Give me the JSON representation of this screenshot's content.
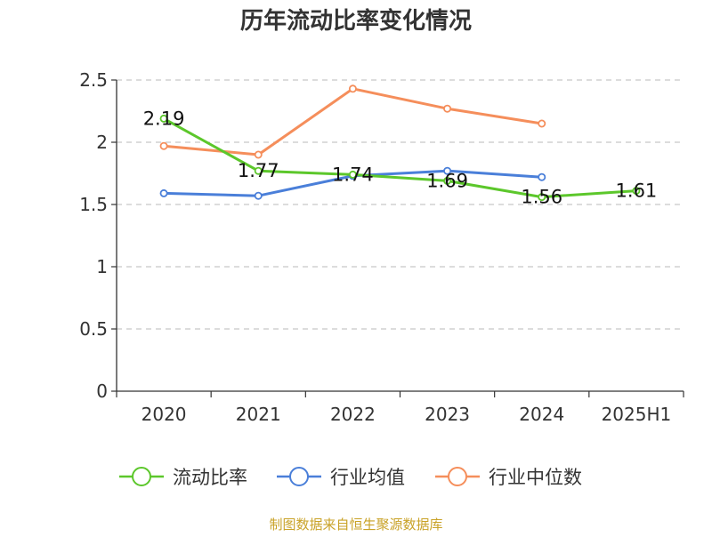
{
  "chart_data": {
    "type": "line",
    "title": "历年流动比率变化情况",
    "categories": [
      "2020",
      "2021",
      "2022",
      "2023",
      "2024",
      "2025H1"
    ],
    "y_ticks": [
      "0",
      "0.5",
      "1",
      "1.5",
      "2",
      "2.5"
    ],
    "ylim": [
      0,
      2.5
    ],
    "grid": "horizontal-dashed",
    "legend_position": "bottom",
    "series": [
      {
        "name": "流动比率",
        "color": "#5cc72b",
        "values": [
          2.19,
          1.77,
          1.74,
          1.69,
          1.56,
          1.61
        ],
        "data_labels": [
          "2.19",
          "1.77",
          "1.74",
          "1.69",
          "1.56",
          "1.61"
        ]
      },
      {
        "name": "行业均值",
        "color": "#4a7fd9",
        "values": [
          1.59,
          1.57,
          1.73,
          1.77,
          1.72,
          null
        ]
      },
      {
        "name": "行业中位数",
        "color": "#f58e5b",
        "values": [
          1.97,
          1.9,
          2.43,
          2.27,
          2.15,
          null
        ]
      }
    ],
    "source": "制图数据来自恒生聚源数据库"
  }
}
